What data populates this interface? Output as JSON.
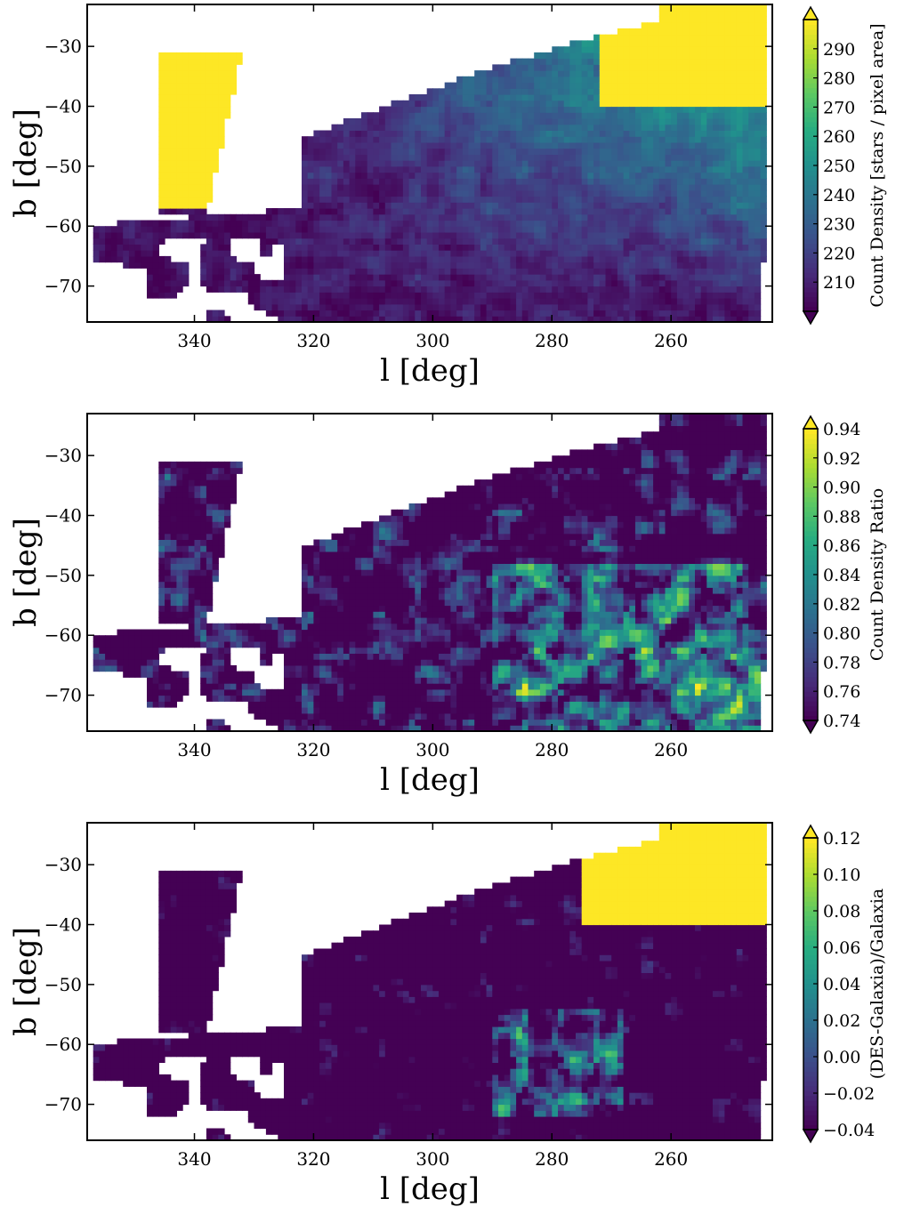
{
  "chart_data": [
    {
      "type": "heatmap",
      "xlabel": "l [deg]",
      "ylabel": "b [deg]",
      "xlim": [
        358,
        243
      ],
      "ylim": [
        -76,
        -23
      ],
      "x_ticks": [
        340,
        320,
        300,
        280,
        260
      ],
      "x_tick_labels": [
        "340",
        "320",
        "300",
        "280",
        "260"
      ],
      "y_ticks": [
        -30,
        -40,
        -50,
        -60,
        -70
      ],
      "y_tick_labels": [
        "−30",
        "−40",
        "−50",
        "−60",
        "−70"
      ],
      "colorbar": {
        "label": "Count Density [stars / pixel area]",
        "range": [
          200,
          300
        ],
        "extend": "both",
        "ticks": [
          210,
          220,
          230,
          240,
          250,
          260,
          270,
          280,
          290
        ],
        "tick_labels": [
          "210",
          "220",
          "230",
          "240",
          "250",
          "260",
          "270",
          "280",
          "290"
        ]
      },
      "colormap": "viridis",
      "grid": false
    },
    {
      "type": "heatmap",
      "xlabel": "l [deg]",
      "ylabel": "b [deg]",
      "xlim": [
        358,
        243
      ],
      "ylim": [
        -76,
        -23
      ],
      "x_ticks": [
        340,
        320,
        300,
        280,
        260
      ],
      "x_tick_labels": [
        "340",
        "320",
        "300",
        "280",
        "260"
      ],
      "y_ticks": [
        -30,
        -40,
        -50,
        -60,
        -70
      ],
      "y_tick_labels": [
        "−30",
        "−40",
        "−50",
        "−60",
        "−70"
      ],
      "colorbar": {
        "label": "Count Density Ratio",
        "range": [
          0.74,
          0.94
        ],
        "extend": "both",
        "ticks": [
          0.74,
          0.76,
          0.78,
          0.8,
          0.82,
          0.84,
          0.86,
          0.88,
          0.9,
          0.92,
          0.94
        ],
        "tick_labels": [
          "0.74",
          "0.76",
          "0.78",
          "0.80",
          "0.82",
          "0.84",
          "0.86",
          "0.88",
          "0.90",
          "0.92",
          "0.94"
        ]
      },
      "colormap": "viridis",
      "grid": false
    },
    {
      "type": "heatmap",
      "xlabel": "l [deg]",
      "ylabel": "b [deg]",
      "xlim": [
        358,
        243
      ],
      "ylim": [
        -76,
        -23
      ],
      "x_ticks": [
        340,
        320,
        300,
        280,
        260
      ],
      "x_tick_labels": [
        "340",
        "320",
        "300",
        "280",
        "260"
      ],
      "y_ticks": [
        -30,
        -40,
        -50,
        -60,
        -70
      ],
      "y_tick_labels": [
        "−30",
        "−40",
        "−50",
        "−60",
        "−70"
      ],
      "colorbar": {
        "label": "(DES-Galaxia)/Galaxia",
        "range": [
          -0.04,
          0.12
        ],
        "extend": "both",
        "ticks": [
          -0.04,
          -0.02,
          0.0,
          0.02,
          0.04,
          0.06,
          0.08,
          0.1,
          0.12
        ],
        "tick_labels": [
          "−0.04",
          "−0.02",
          "0.00",
          "0.02",
          "0.04",
          "0.06",
          "0.08",
          "0.10",
          "0.12"
        ]
      },
      "colormap": "viridis",
      "grid": false
    }
  ]
}
